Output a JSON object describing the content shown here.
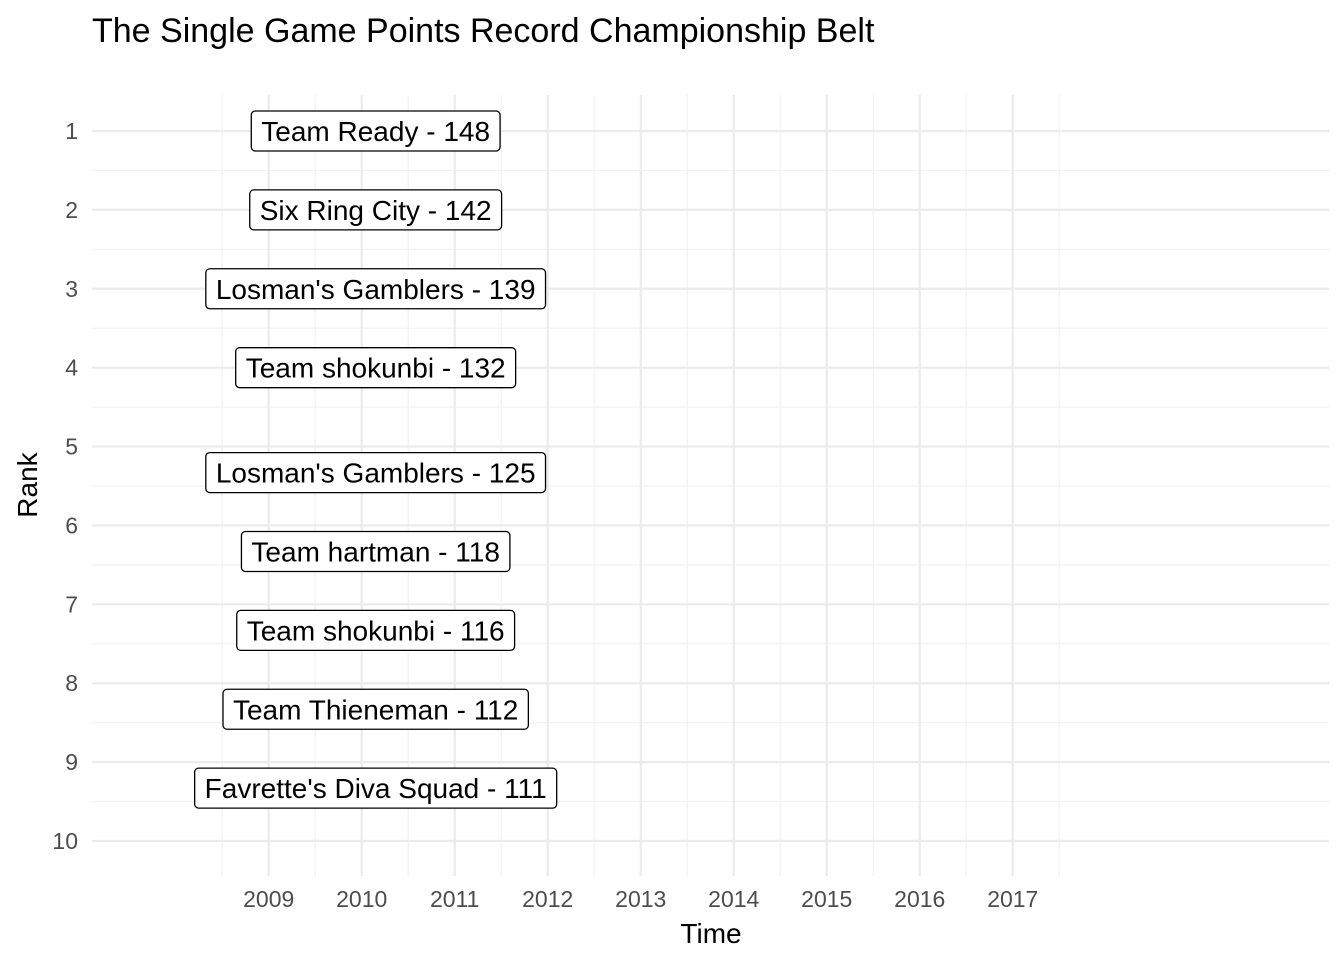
{
  "chart_data": {
    "type": "scatter",
    "title": "The Single Game Points Record Championship Belt",
    "xlabel": "Time",
    "ylabel": "Rank",
    "x_ticks": [
      "2009",
      "2010",
      "2011",
      "2012",
      "2013",
      "2014",
      "2015",
      "2016",
      "2017"
    ],
    "y_ticks": [
      "1",
      "2",
      "3",
      "4",
      "5",
      "6",
      "7",
      "8",
      "9",
      "10"
    ],
    "xlim": [
      2007.1,
      2020.4
    ],
    "ylim": [
      1,
      10
    ],
    "y_reversed": true,
    "grid": true,
    "legend": "none",
    "points": [
      {
        "label": "Team Ready - 148",
        "x": 2010.15,
        "y": 1.0
      },
      {
        "label": "Six Ring City - 142",
        "x": 2010.15,
        "y": 2.0
      },
      {
        "label": "Losman's Gamblers - 139",
        "x": 2010.15,
        "y": 3.0
      },
      {
        "label": "Team shokunbi - 132",
        "x": 2010.15,
        "y": 4.0
      },
      {
        "label": "Losman's Gamblers - 125",
        "x": 2010.15,
        "y": 5.33
      },
      {
        "label": "Team hartman - 118",
        "x": 2010.15,
        "y": 6.33
      },
      {
        "label": "Team shokunbi - 116",
        "x": 2010.15,
        "y": 7.33
      },
      {
        "label": "Team Thieneman - 112",
        "x": 2010.15,
        "y": 8.33
      },
      {
        "label": "Favrette's Diva Squad - 111",
        "x": 2010.15,
        "y": 9.33
      }
    ]
  }
}
